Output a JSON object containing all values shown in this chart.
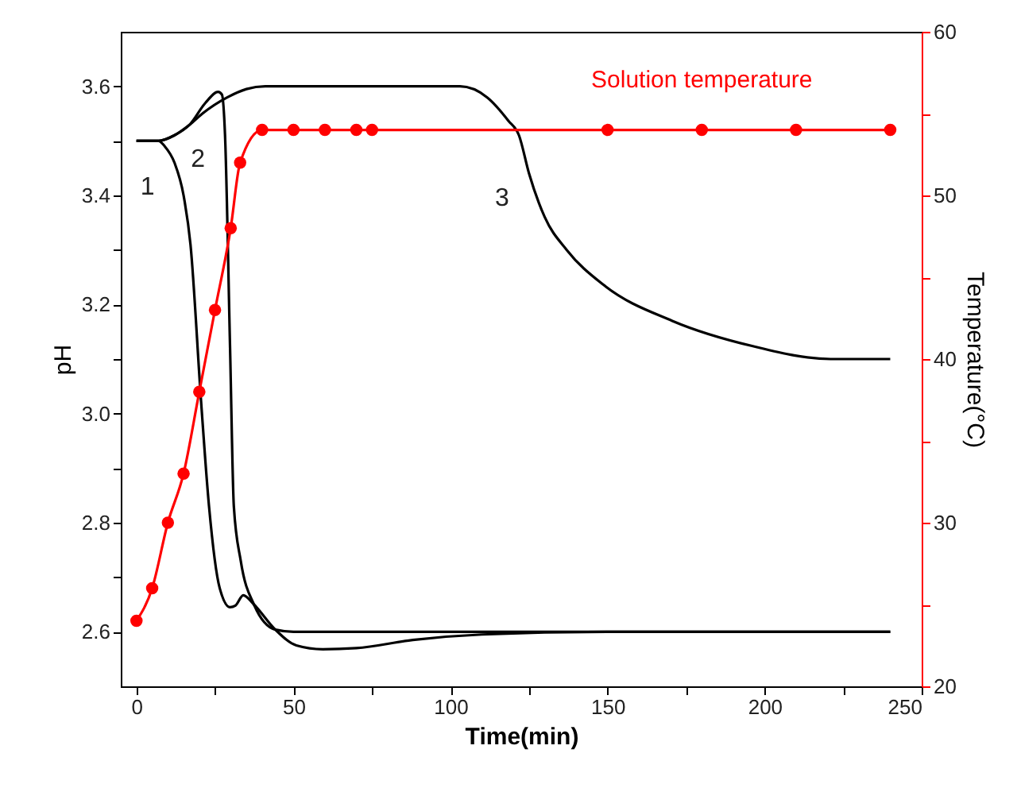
{
  "chart_data": {
    "type": "line",
    "xlabel": "Time(min)",
    "ylabel": "pH",
    "y2label": "Temperature(°C)",
    "xlim": [
      -5,
      250
    ],
    "xticks": [
      0,
      {
        "value": 25,
        "label": null
      },
      50,
      {
        "value": 75,
        "label": null
      },
      100,
      {
        "value": 125,
        "label": null
      },
      150,
      {
        "value": 175,
        "label": null
      },
      200,
      {
        "value": 225,
        "label": null
      },
      250
    ],
    "ylim": [
      2.5,
      3.7
    ],
    "yticks": [
      2.6,
      {
        "value": 2.7,
        "label": null
      },
      2.8,
      {
        "value": 2.9,
        "label": null
      },
      {
        "value": 3,
        "label": "3.0"
      },
      {
        "value": 3.1,
        "label": null
      },
      3.2,
      {
        "value": 3.3,
        "label": null
      },
      3.4,
      {
        "value": 3.5,
        "label": null
      },
      3.6
    ],
    "y2lim": [
      20,
      60
    ],
    "y2ticks": [
      20,
      {
        "value": 25,
        "label": null
      },
      30,
      {
        "value": 35,
        "label": null
      },
      40,
      {
        "value": 45,
        "label": null
      },
      50,
      {
        "value": 55,
        "label": null
      },
      60
    ],
    "grid": false,
    "legend": false,
    "series": [
      {
        "color": "#000000",
        "x": [
          0,
          7,
          9,
          12.1,
          15,
          17.2,
          20.6,
          23.1,
          26.5,
          29.8,
          31.5,
          34,
          37.4,
          44.2,
          50.9,
          59.3,
          70,
          88,
          110,
          150,
          240
        ],
        "values": [
          3.5,
          3.5,
          3.49,
          3.46,
          3.4,
          3.31,
          3.02,
          2.83,
          2.68,
          2.645,
          2.648,
          2.667,
          2.65,
          2.604,
          2.575,
          2.568,
          2.57,
          2.585,
          2.595,
          2.6,
          2.6
        ]
      },
      {
        "color": "#000000",
        "x": [
          0,
          7,
          12,
          17,
          22,
          26,
          27.2,
          28.2,
          29.8,
          31,
          33.2,
          37.4,
          44.2,
          50,
          240
        ],
        "values": [
          3.5,
          3.5,
          3.51,
          3.53,
          3.57,
          3.59,
          3.585,
          3.51,
          3.12,
          2.83,
          2.73,
          2.65,
          2.604,
          2.6,
          2.6
        ]
      },
      {
        "color": "#000000",
        "x": [
          0,
          7,
          12,
          17,
          21,
          29,
          35,
          41,
          103,
          111.6,
          118.4,
          121.8,
          125,
          130,
          137,
          148.7,
          170.6,
          196,
          221,
          240
        ],
        "values": [
          3.5,
          3.5,
          3.51,
          3.53,
          3.55,
          3.58,
          3.595,
          3.6,
          3.6,
          3.58,
          3.537,
          3.51,
          3.44,
          3.36,
          3.3,
          3.236,
          3.17,
          3.124,
          3.1,
          3.1
        ]
      },
      {
        "name": "Solution temperature",
        "color": "#ff0000",
        "axis": "y2",
        "marker": "circle",
        "x": [
          0,
          5,
          10,
          15,
          20,
          25,
          30,
          33,
          40,
          50,
          60,
          70,
          75,
          150,
          180,
          210,
          240
        ],
        "values": [
          24,
          26,
          30,
          33,
          38,
          43,
          48,
          52,
          54,
          54,
          54,
          54,
          54,
          54,
          54,
          54,
          54
        ]
      }
    ],
    "annotations": [
      {
        "text": "1",
        "x": 12.1,
        "y": 3.46
      },
      {
        "text": "2",
        "x": 28.2,
        "y": 3.51
      },
      {
        "text": "3",
        "x": 125,
        "y": 3.44
      }
    ]
  }
}
